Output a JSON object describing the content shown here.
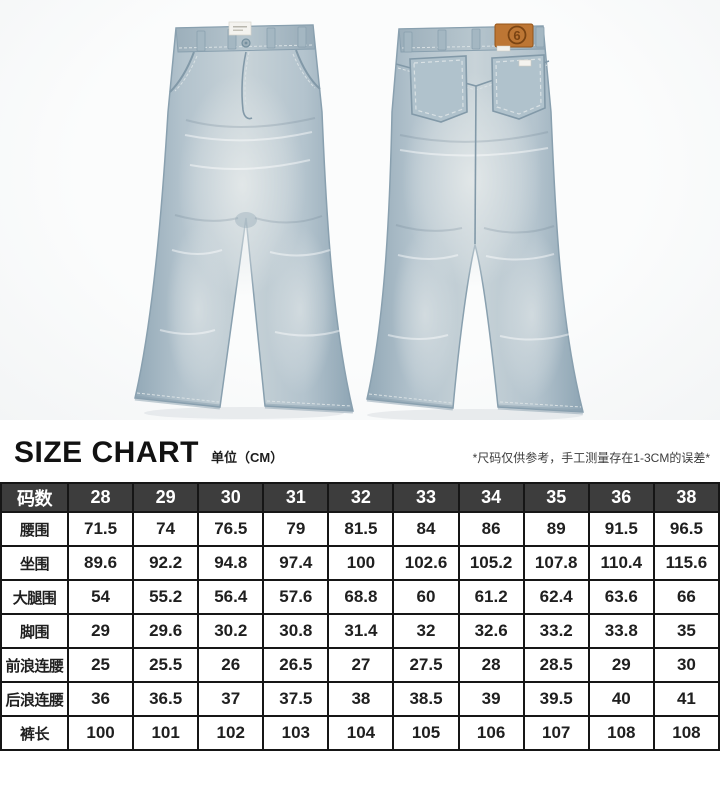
{
  "product": {
    "patch_logo": "6",
    "colors": {
      "denim_base": "#b3c3cd",
      "denim_light": "#c9d4d9",
      "denim_dark": "#8ea5b4",
      "seam": "#8299a8",
      "patch_leather": "#bd7634",
      "patch_ink": "#7a4413",
      "photo_bg": "#f7f8f8"
    }
  },
  "size_chart": {
    "title": "SIZE CHART",
    "unit_label": "单位（CM）",
    "disclaimer": "*尺码仅供参考，手工测量存在1-3CM的误差*"
  },
  "size_table": {
    "corner_label": "码数",
    "sizes": [
      "28",
      "29",
      "30",
      "31",
      "32",
      "33",
      "34",
      "35",
      "36",
      "38"
    ],
    "rows": [
      {
        "label": "腰围",
        "values": [
          "71.5",
          "74",
          "76.5",
          "79",
          "81.5",
          "84",
          "86",
          "89",
          "91.5",
          "96.5"
        ]
      },
      {
        "label": "坐围",
        "values": [
          "89.6",
          "92.2",
          "94.8",
          "97.4",
          "100",
          "102.6",
          "105.2",
          "107.8",
          "110.4",
          "115.6"
        ]
      },
      {
        "label": "大腿围",
        "values": [
          "54",
          "55.2",
          "56.4",
          "57.6",
          "68.8",
          "60",
          "61.2",
          "62.4",
          "63.6",
          "66"
        ]
      },
      {
        "label": "脚围",
        "values": [
          "29",
          "29.6",
          "30.2",
          "30.8",
          "31.4",
          "32",
          "32.6",
          "33.2",
          "33.8",
          "35"
        ]
      },
      {
        "label": "前浪连腰",
        "values": [
          "25",
          "25.5",
          "26",
          "26.5",
          "27",
          "27.5",
          "28",
          "28.5",
          "29",
          "30"
        ]
      },
      {
        "label": "后浪连腰",
        "values": [
          "36",
          "36.5",
          "37",
          "37.5",
          "38",
          "38.5",
          "39",
          "39.5",
          "40",
          "41"
        ]
      },
      {
        "label": "裤长",
        "values": [
          "100",
          "101",
          "102",
          "103",
          "104",
          "105",
          "106",
          "107",
          "108",
          "108"
        ]
      }
    ]
  }
}
